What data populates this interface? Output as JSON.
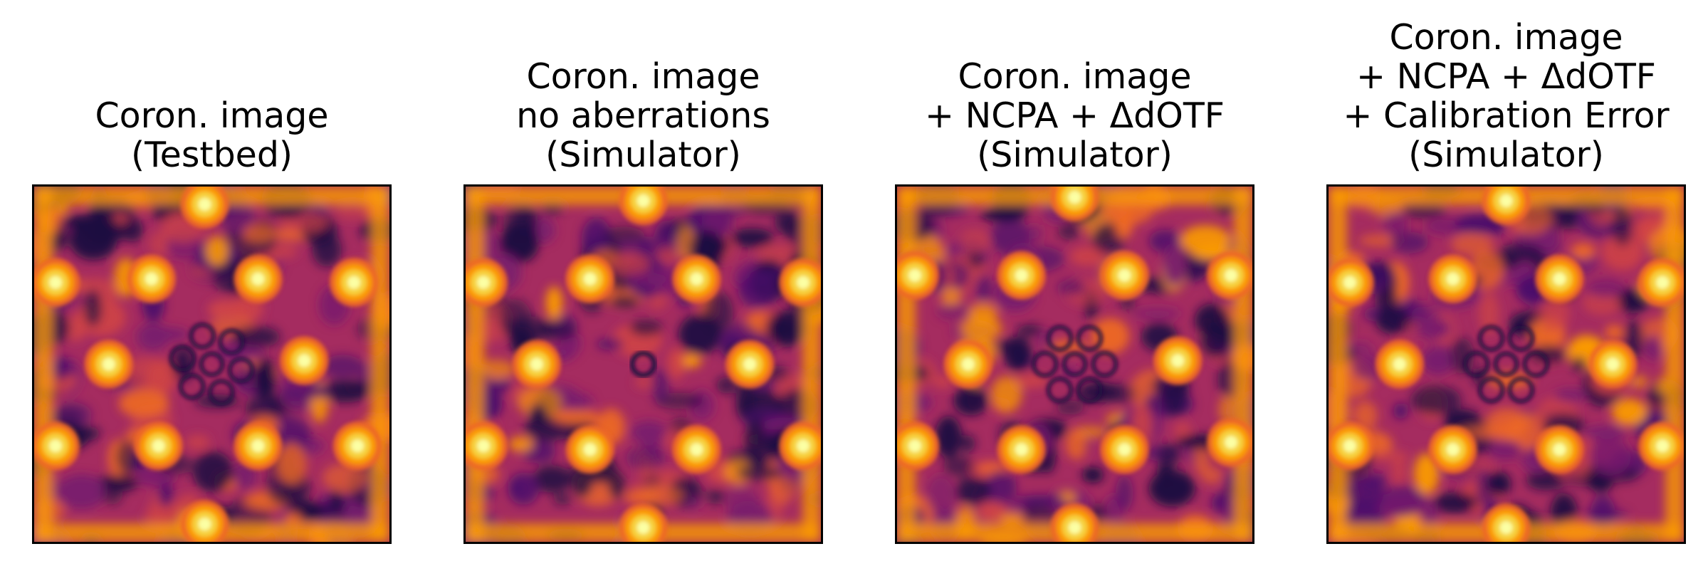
{
  "panels": [
    {
      "title": "Coron. image\n(Testbed)",
      "variant": "testbed"
    },
    {
      "title": "Coron. image\nno aberrations\n(Simulator)",
      "variant": "ideal"
    },
    {
      "title": "Coron. image\n+ NCPA + ΔdOTF\n(Simulator)",
      "variant": "ncpa"
    },
    {
      "title": "Coron. image\n+ NCPA + ΔdOTF\n+ Calibration Error\n(Simulator)",
      "variant": "calib"
    }
  ],
  "colormap": [
    "#1b0c41",
    "#4a0c6b",
    "#781c6d",
    "#a52c60",
    "#cf4446",
    "#ed6925",
    "#fb9b06",
    "#f7d13d",
    "#fcffa4"
  ]
}
